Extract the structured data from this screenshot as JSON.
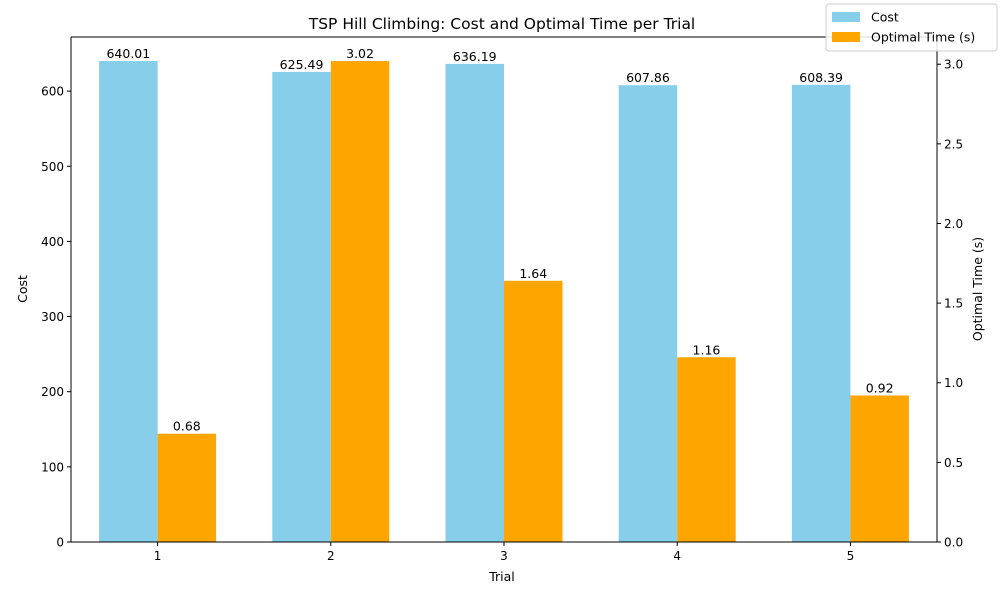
{
  "chart_data": {
    "type": "bar",
    "title": "TSP Hill Climbing: Cost and Optimal Time per Trial",
    "xlabel": "Trial",
    "ylabel": "Cost",
    "ylabel_right": "Optimal Time (s)",
    "categories": [
      "1",
      "2",
      "3",
      "4",
      "5"
    ],
    "series": [
      {
        "name": "Cost",
        "axis": "left",
        "color": "#87CEEB",
        "values": [
          640.01,
          625.49,
          636.19,
          607.86,
          608.39
        ],
        "labels": [
          "640.01",
          "625.49",
          "636.19",
          "607.86",
          "608.39"
        ]
      },
      {
        "name": "Optimal Time (s)",
        "axis": "right",
        "color": "#FFA500",
        "values": [
          0.68,
          3.02,
          1.64,
          1.16,
          0.92
        ],
        "labels": [
          "0.68",
          "3.02",
          "1.64",
          "1.16",
          "0.92"
        ]
      }
    ],
    "ylim": [
      0,
      672
    ],
    "ylim_right": [
      0,
      3.171
    ],
    "yticks": [
      "0",
      "100",
      "200",
      "300",
      "400",
      "500",
      "600"
    ],
    "yticks_right": [
      "0.0",
      "0.5",
      "1.0",
      "1.5",
      "2.0",
      "2.5",
      "3.0"
    ],
    "grid": false,
    "legend": "top-right"
  }
}
